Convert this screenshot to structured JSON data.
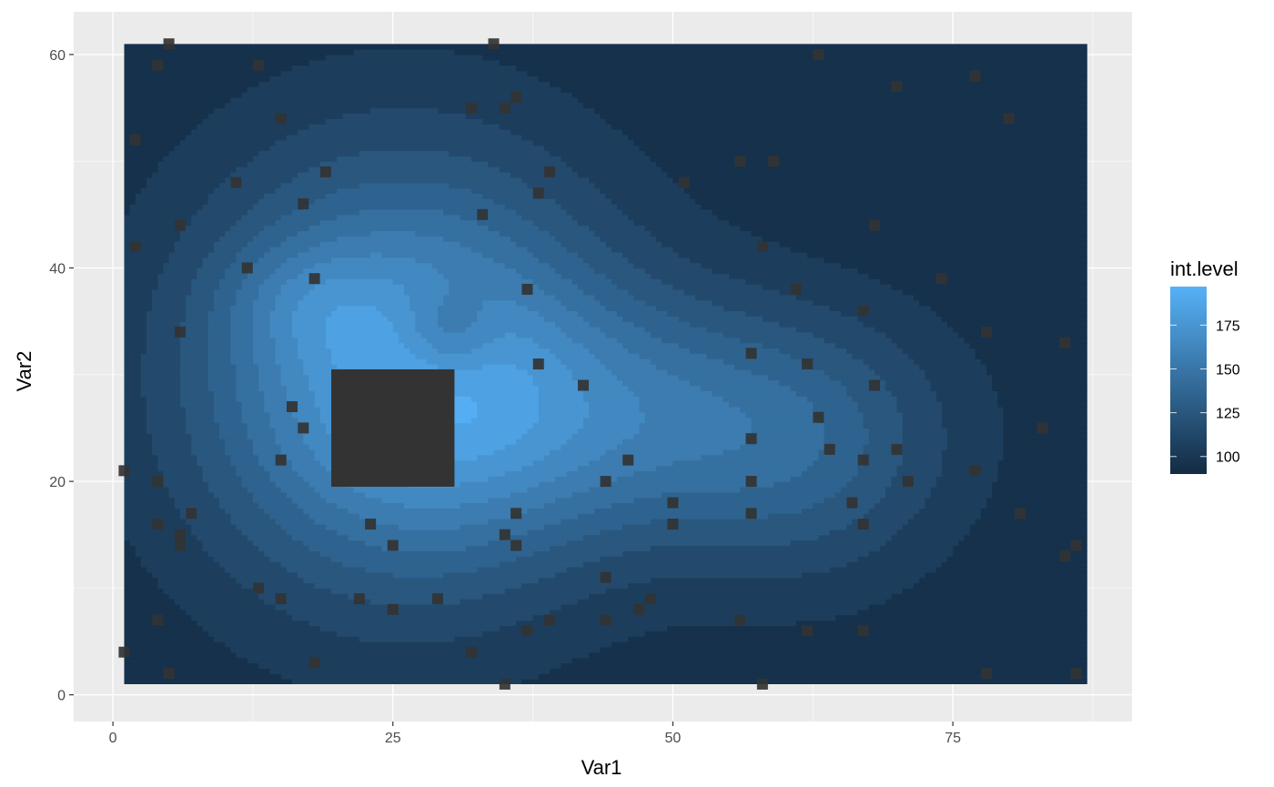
{
  "chart_data": {
    "type": "heatmap",
    "title": "",
    "xlabel": "Var1",
    "ylabel": "Var2",
    "xlim": [
      -3.5,
      91
    ],
    "ylim": [
      -2.5,
      64
    ],
    "x_ticks": [
      0,
      25,
      50,
      75
    ],
    "y_ticks": [
      0,
      20,
      40,
      60
    ],
    "grid": true,
    "background": "#ebebeb",
    "raster_extent": {
      "x": [
        1,
        87
      ],
      "y": [
        1,
        61
      ]
    },
    "fill": {
      "name": "int.level",
      "low": 90,
      "high": 197,
      "low_color": "#132b43",
      "high_color": "#56b1f7",
      "breaks": [
        100,
        125,
        150,
        175
      ],
      "levels": [
        95,
        105,
        115,
        125,
        135,
        145,
        155,
        165,
        175,
        185,
        195
      ]
    },
    "fill_bumps": [
      {
        "x": 26,
        "y": 30,
        "sx": 13,
        "sy": 14,
        "amp": 88
      },
      {
        "x": 17,
        "y": 37,
        "sx": 5,
        "sy": 4,
        "amp": 16
      },
      {
        "x": 48,
        "y": 26,
        "sx": 15,
        "sy": 8,
        "amp": 40
      },
      {
        "x": 62,
        "y": 22,
        "sx": 9,
        "sy": 9,
        "amp": 25
      },
      {
        "x": 30,
        "y": 34,
        "sx": 3,
        "sy": 3,
        "amp": -25
      }
    ],
    "fill_base": 92,
    "highlight_cell": {
      "x": [
        19.5,
        30.5
      ],
      "y": [
        19.5,
        30.5
      ]
    },
    "points": [
      [
        5,
        61
      ],
      [
        34,
        61
      ],
      [
        4,
        59
      ],
      [
        13,
        59
      ],
      [
        63,
        60
      ],
      [
        77,
        58
      ],
      [
        70,
        57
      ],
      [
        36,
        56
      ],
      [
        32,
        55
      ],
      [
        35,
        55
      ],
      [
        15,
        54
      ],
      [
        80,
        54
      ],
      [
        2,
        52
      ],
      [
        19,
        49
      ],
      [
        39,
        49
      ],
      [
        56,
        50
      ],
      [
        59,
        50
      ],
      [
        11,
        48
      ],
      [
        51,
        48
      ],
      [
        38,
        47
      ],
      [
        17,
        46
      ],
      [
        33,
        45
      ],
      [
        6,
        44
      ],
      [
        68,
        44
      ],
      [
        2,
        42
      ],
      [
        58,
        42
      ],
      [
        12,
        40
      ],
      [
        18,
        39
      ],
      [
        74,
        39
      ],
      [
        37,
        38
      ],
      [
        61,
        38
      ],
      [
        67,
        36
      ],
      [
        6,
        34
      ],
      [
        78,
        34
      ],
      [
        85,
        33
      ],
      [
        57,
        32
      ],
      [
        38,
        31
      ],
      [
        62,
        31
      ],
      [
        42,
        29
      ],
      [
        68,
        29
      ],
      [
        16,
        27
      ],
      [
        63,
        26
      ],
      [
        17,
        25
      ],
      [
        83,
        25
      ],
      [
        57,
        24
      ],
      [
        64,
        23
      ],
      [
        70,
        23
      ],
      [
        15,
        22
      ],
      [
        46,
        22
      ],
      [
        67,
        22
      ],
      [
        1,
        21
      ],
      [
        77,
        21
      ],
      [
        4,
        20
      ],
      [
        44,
        20
      ],
      [
        57,
        20
      ],
      [
        71,
        20
      ],
      [
        50,
        18
      ],
      [
        66,
        18
      ],
      [
        7,
        17
      ],
      [
        36,
        17
      ],
      [
        57,
        17
      ],
      [
        81,
        17
      ],
      [
        4,
        16
      ],
      [
        23,
        16
      ],
      [
        50,
        16
      ],
      [
        67,
        16
      ],
      [
        6,
        15
      ],
      [
        35,
        15
      ],
      [
        6,
        14
      ],
      [
        25,
        14
      ],
      [
        36,
        14
      ],
      [
        86,
        14
      ],
      [
        85,
        13
      ],
      [
        44,
        11
      ],
      [
        13,
        10
      ],
      [
        15,
        9
      ],
      [
        22,
        9
      ],
      [
        29,
        9
      ],
      [
        48,
        9
      ],
      [
        25,
        8
      ],
      [
        47,
        8
      ],
      [
        4,
        7
      ],
      [
        39,
        7
      ],
      [
        44,
        7
      ],
      [
        56,
        7
      ],
      [
        37,
        6
      ],
      [
        62,
        6
      ],
      [
        67,
        6
      ],
      [
        1,
        4
      ],
      [
        32,
        4
      ],
      [
        18,
        3
      ],
      [
        5,
        2
      ],
      [
        78,
        2
      ],
      [
        86,
        2
      ],
      [
        35,
        1
      ],
      [
        58,
        1
      ]
    ]
  }
}
